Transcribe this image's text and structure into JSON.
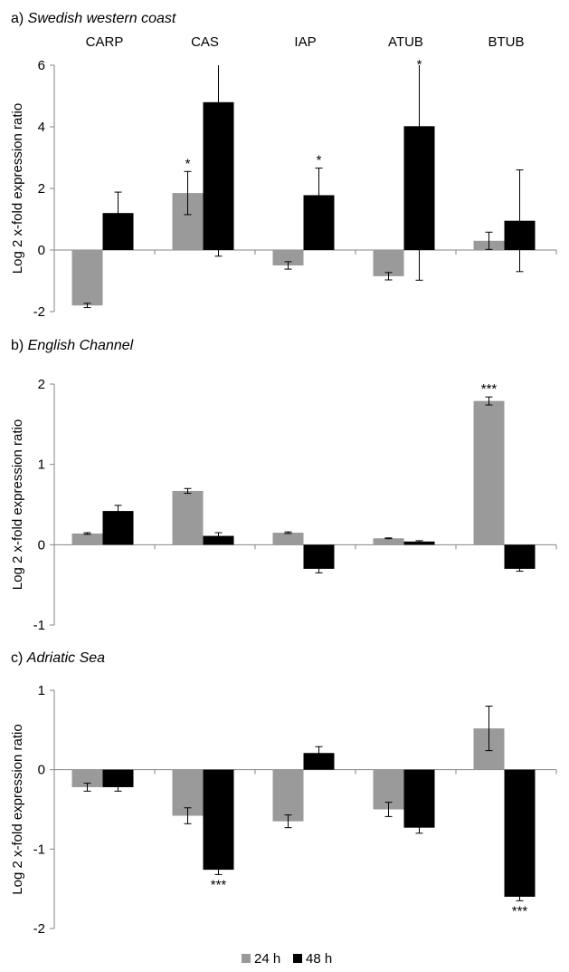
{
  "legend": {
    "items": [
      {
        "label": "24 h",
        "color": "#9a9a9a"
      },
      {
        "label": "48 h",
        "color": "#000000"
      }
    ],
    "position": "bottom"
  },
  "chart_data": [
    {
      "type": "bar",
      "panel_label": "a)",
      "title": "Swedish western coast",
      "categories_position": "top",
      "categories": [
        "CARP",
        "CAS",
        "IAP",
        "ATUB",
        "BTUB"
      ],
      "ylabel": "Log 2 x-fold expression ratio",
      "ylim": [
        -2,
        6
      ],
      "yticks": [
        -2,
        0,
        2,
        4,
        6
      ],
      "grid": false,
      "series": [
        {
          "name": "24 h",
          "color": "#9a9a9a",
          "values": [
            -1.8,
            1.85,
            -0.5,
            -0.85,
            0.3
          ],
          "errors": [
            0.07,
            0.7,
            0.12,
            0.12,
            0.28
          ],
          "annotations": [
            "",
            "*",
            "",
            "",
            ""
          ]
        },
        {
          "name": "48 h",
          "color": "#000000",
          "values": [
            1.2,
            4.8,
            1.78,
            4.02,
            0.95
          ],
          "errors": [
            0.68,
            5.0,
            0.88,
            5.0,
            1.65
          ],
          "annotations": [
            "",
            "",
            "*",
            "*",
            ""
          ]
        }
      ]
    },
    {
      "type": "bar",
      "panel_label": "b)",
      "title": "English Channel",
      "categories": [
        "CARP",
        "CAS",
        "IAP",
        "ATUB",
        "BTUB"
      ],
      "ylabel": "Log 2 x-fold expression ratio",
      "ylim": [
        -1,
        2
      ],
      "yticks": [
        -1,
        0,
        1,
        2
      ],
      "grid": false,
      "series": [
        {
          "name": "24 h",
          "color": "#9a9a9a",
          "values": [
            0.14,
            0.67,
            0.15,
            0.08,
            1.79
          ],
          "errors": [
            0.01,
            0.03,
            0.01,
            0.005,
            0.05
          ],
          "annotations": [
            "",
            "",
            "",
            "",
            "***"
          ]
        },
        {
          "name": "48 h",
          "color": "#000000",
          "values": [
            0.42,
            0.11,
            -0.3,
            0.04,
            -0.3
          ],
          "errors": [
            0.07,
            0.04,
            0.05,
            0.01,
            0.03
          ],
          "annotations": [
            "",
            "",
            "",
            "",
            ""
          ]
        }
      ]
    },
    {
      "type": "bar",
      "panel_label": "c)",
      "title": "Adriatic Sea",
      "categories": [
        "CARP",
        "CAS",
        "IAP",
        "ATUB",
        "BTUB"
      ],
      "ylabel": "Log 2 x-fold expression ratio",
      "ylim": [
        -2,
        1
      ],
      "yticks": [
        -2,
        -1,
        0,
        1
      ],
      "grid": false,
      "series": [
        {
          "name": "24 h",
          "color": "#9a9a9a",
          "values": [
            -0.22,
            -0.58,
            -0.65,
            -0.5,
            0.52
          ],
          "errors": [
            0.05,
            0.1,
            0.08,
            0.09,
            0.28
          ],
          "annotations": [
            "",
            "",
            "",
            "",
            ""
          ]
        },
        {
          "name": "48 h",
          "color": "#000000",
          "values": [
            -0.22,
            -1.26,
            0.21,
            -0.73,
            -1.6
          ],
          "errors": [
            0.05,
            0.06,
            0.08,
            0.07,
            0.05
          ],
          "annotations": [
            "",
            "***",
            "",
            "",
            "***"
          ]
        }
      ]
    }
  ]
}
